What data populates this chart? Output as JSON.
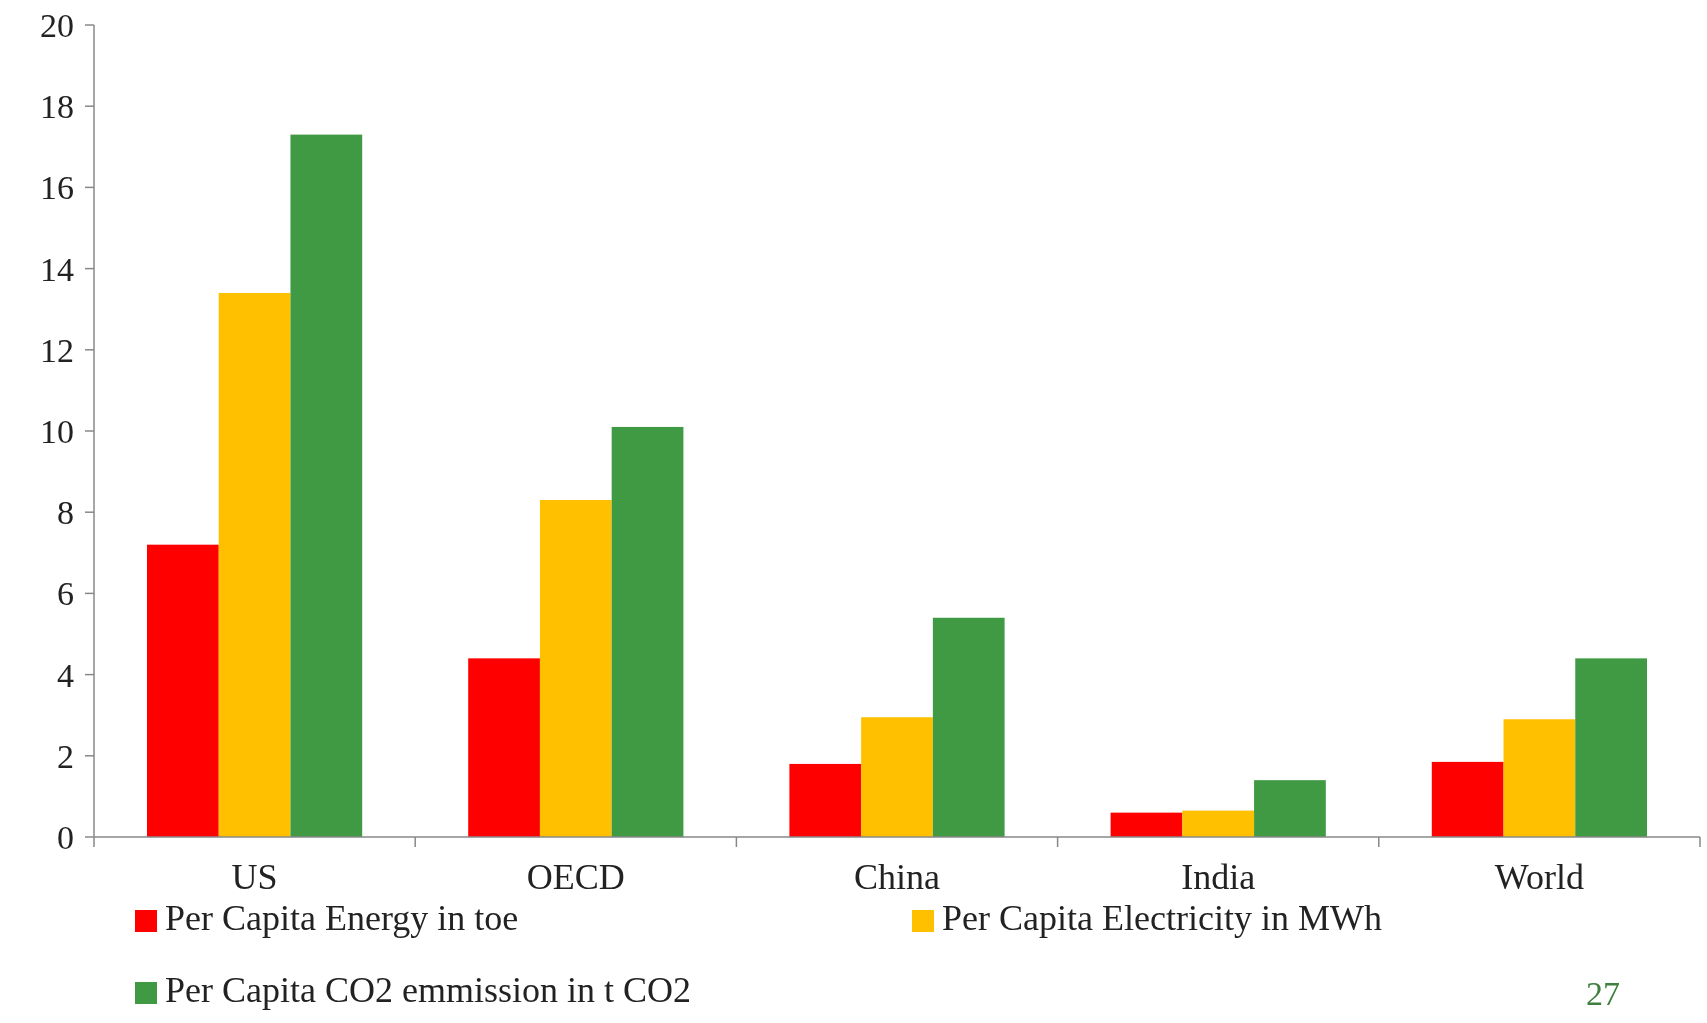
{
  "chart_data": {
    "type": "bar",
    "categories": [
      "US",
      "OECD",
      "China",
      "India",
      "World"
    ],
    "series": [
      {
        "name": "Per Capita Energy in toe",
        "color": "#ff0000",
        "values": [
          7.2,
          4.4,
          1.8,
          0.6,
          1.85
        ]
      },
      {
        "name": "Per Capita Electricity in MWh",
        "color": "#ffc000",
        "values": [
          13.4,
          8.3,
          2.95,
          0.65,
          2.9
        ]
      },
      {
        "name": "Per Capita CO2 emmission in t CO2",
        "color": "#3f9a43",
        "values": [
          17.3,
          10.1,
          5.4,
          1.4,
          4.4
        ]
      }
    ],
    "ylim": [
      0,
      20
    ],
    "yticks": [
      0,
      2,
      4,
      6,
      8,
      10,
      12,
      14,
      16,
      18,
      20
    ],
    "grid": false,
    "legend": "bottom",
    "annotations": [
      "27"
    ]
  }
}
